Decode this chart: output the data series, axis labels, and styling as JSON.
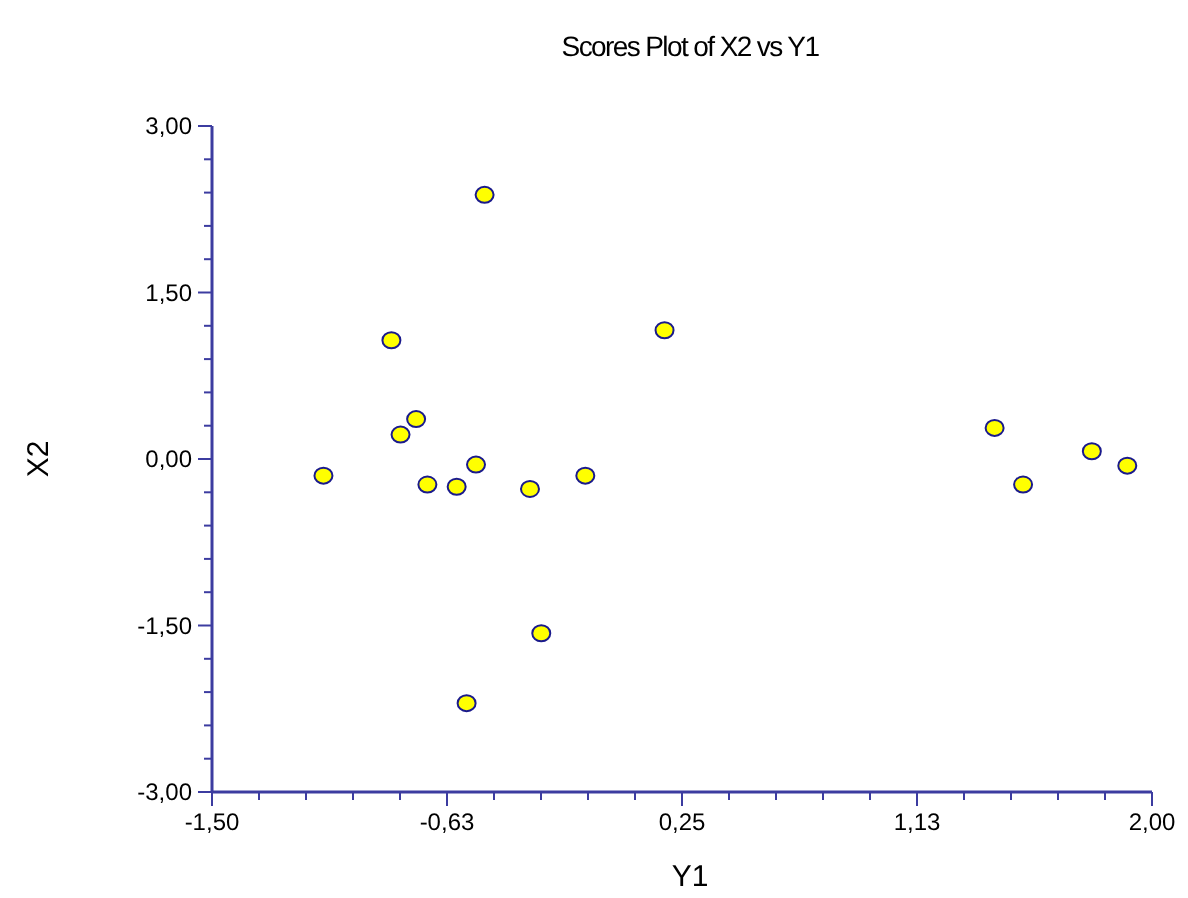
{
  "chart_data": {
    "type": "scatter",
    "title": "Scores Plot of X2 vs Y1",
    "xlabel": "Y1",
    "ylabel": "X2",
    "x": [
      -1.085,
      -0.832,
      -0.798,
      -0.74,
      -0.698,
      -0.589,
      -0.552,
      -0.517,
      -0.485,
      -0.316,
      -0.274,
      -0.11,
      0.185,
      1.414,
      1.52,
      1.776,
      1.908
    ],
    "series": [
      {
        "color": "#ffff00",
        "values": [
          -0.15,
          1.07,
          0.22,
          0.36,
          -0.23,
          -0.25,
          -2.2,
          -0.05,
          2.38,
          -0.27,
          -1.57,
          -0.15,
          1.16,
          0.28,
          -0.23,
          0.07,
          -0.06
        ]
      }
    ],
    "marker": "circle",
    "grid": false,
    "xlim": [
      -1.5,
      2
    ],
    "ylim": [
      -3,
      3
    ],
    "xticks": [
      {
        "value": -1.5,
        "label": "-1,50"
      },
      {
        "value": -1.325,
        "label": null
      },
      {
        "value": -1.15,
        "label": null
      },
      {
        "value": -0.975,
        "label": null
      },
      {
        "value": -0.8,
        "label": null
      },
      {
        "value": -0.625,
        "label": "-0,63"
      },
      {
        "value": -0.45,
        "label": null
      },
      {
        "value": -0.275,
        "label": null
      },
      {
        "value": -0.1,
        "label": null
      },
      {
        "value": 0.075,
        "label": null
      },
      {
        "value": 0.25,
        "label": "0,25"
      },
      {
        "value": 0.425,
        "label": null
      },
      {
        "value": 0.6,
        "label": null
      },
      {
        "value": 0.775,
        "label": null
      },
      {
        "value": 0.95,
        "label": null
      },
      {
        "value": 1.125,
        "label": "1,13"
      },
      {
        "value": 1.3,
        "label": null
      },
      {
        "value": 1.475,
        "label": null
      },
      {
        "value": 1.65,
        "label": null
      },
      {
        "value": 1.825,
        "label": null
      },
      {
        "value": 2,
        "label": "2,00"
      }
    ],
    "yticks": [
      {
        "value": -3,
        "label": "-3,00"
      },
      {
        "value": -2.7,
        "label": null
      },
      {
        "value": -2.4,
        "label": null
      },
      {
        "value": -2.1,
        "label": null
      },
      {
        "value": -1.8,
        "label": null
      },
      {
        "value": -1.5,
        "label": "-1,50"
      },
      {
        "value": -1.2,
        "label": null
      },
      {
        "value": -0.9,
        "label": null
      },
      {
        "value": -0.6,
        "label": null
      },
      {
        "value": -0.3,
        "label": null
      },
      {
        "value": 0,
        "label": "0,00"
      },
      {
        "value": 0.3,
        "label": null
      },
      {
        "value": 0.6,
        "label": null
      },
      {
        "value": 0.9,
        "label": null
      },
      {
        "value": 1.2,
        "label": null
      },
      {
        "value": 1.5,
        "label": "1,50"
      },
      {
        "value": 1.8,
        "label": null
      },
      {
        "value": 2.1,
        "label": null
      },
      {
        "value": 2.4,
        "label": null
      },
      {
        "value": 2.7,
        "label": null
      },
      {
        "value": 3,
        "label": "3,00"
      }
    ]
  }
}
